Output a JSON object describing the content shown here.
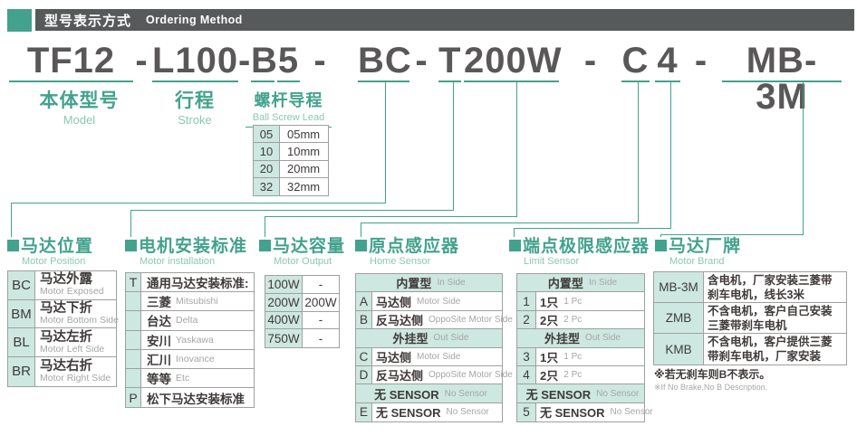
{
  "header": {
    "title_zh": "型号表示方式",
    "title_en": "Ordering Method"
  },
  "model_code": {
    "full": "TF12-L100-B5-BC-T200W-C4-MB-3M",
    "segments": [
      "TF12",
      "-",
      "L100",
      "-",
      "B",
      "5",
      "-",
      "BC",
      "-",
      "T",
      "200W",
      "-",
      "C",
      "4",
      "-",
      "MB-3M"
    ]
  },
  "top_groups": [
    {
      "zh": "本体型号",
      "en": "Model"
    },
    {
      "zh": "行程",
      "en": "Stroke"
    },
    {
      "zh": "螺杆导程",
      "en": "Ball Screw Lead"
    }
  ],
  "ball_screw_lead": {
    "rows": [
      {
        "code": "05",
        "zh": "05mm"
      },
      {
        "code": "10",
        "zh": "10mm"
      },
      {
        "code": "20",
        "zh": "20mm"
      },
      {
        "code": "32",
        "zh": "32mm"
      }
    ]
  },
  "sections": [
    {
      "title_zh": "马达位置",
      "title_en": "Motor Position",
      "rows": [
        {
          "code": "BC",
          "zh": "马达外露",
          "en": "Motor Exposed"
        },
        {
          "code": "BM",
          "zh": "马达下折",
          "en": "Motor Bottom Side"
        },
        {
          "code": "BL",
          "zh": "马达左折",
          "en": "Motor Left Side"
        },
        {
          "code": "BR",
          "zh": "马达右折",
          "en": "Motor Right Side"
        }
      ]
    },
    {
      "title_zh": "电机安装标准",
      "title_en": "Motor installation",
      "rows": [
        {
          "code": "T",
          "zh": "通用马达安装标准:",
          "en": ""
        },
        {
          "code": "",
          "zh": "三菱",
          "en": "Mitsubishi"
        },
        {
          "code": "",
          "zh": "台达",
          "en": "Delta"
        },
        {
          "code": "",
          "zh": "安川",
          "en": "Yaskawa"
        },
        {
          "code": "",
          "zh": "汇川",
          "en": "Inovance"
        },
        {
          "code": "",
          "zh": "等等",
          "en": "Etc"
        },
        {
          "code": "P",
          "zh": "松下马达安装标准",
          "en": ""
        }
      ]
    },
    {
      "title_zh": "马达容量",
      "title_en": "Motor Output",
      "rows": [
        {
          "code": "100W",
          "zh": "-"
        },
        {
          "code": "200W",
          "zh": "200W"
        },
        {
          "code": "400W",
          "zh": "-"
        },
        {
          "code": "750W",
          "zh": "-"
        }
      ]
    },
    {
      "title_zh": "原点感应器",
      "title_en": "Home Sensor",
      "rows": [
        {
          "header": true,
          "zh": "内置型",
          "en": "In Side"
        },
        {
          "code": "A",
          "zh": "马达侧",
          "en": "Motor Side"
        },
        {
          "code": "B",
          "zh": "反马达侧",
          "en": "OppoSite Motor Side"
        },
        {
          "header": true,
          "zh": "外挂型",
          "en": "Out Side"
        },
        {
          "code": "C",
          "zh": "马达侧",
          "en": "Motor Side"
        },
        {
          "code": "D",
          "zh": "反马达侧",
          "en": "OppoSite Motor Side"
        },
        {
          "header": true,
          "zh": "无 SENSOR",
          "en": "No Sensor"
        },
        {
          "code": "E",
          "zh": "无 SENSOR",
          "en": "No Sensor"
        }
      ]
    },
    {
      "title_zh": "端点极限感应器",
      "title_en": "Limit Sensor",
      "rows": [
        {
          "header": true,
          "zh": "内置型",
          "en": "In Side"
        },
        {
          "code": "1",
          "zh": "1只",
          "en": "1 Pc"
        },
        {
          "code": "2",
          "zh": "2只",
          "en": "2 Pc"
        },
        {
          "header": true,
          "zh": "外挂型",
          "en": "Out Side"
        },
        {
          "code": "3",
          "zh": "1只",
          "en": "1 Pc"
        },
        {
          "code": "4",
          "zh": "2只",
          "en": "2 Pc"
        },
        {
          "header": true,
          "zh": "无 SENSOR",
          "en": "No Sensor"
        },
        {
          "code": "5",
          "zh": "无 SENSOR",
          "en": "No Sensor"
        }
      ]
    },
    {
      "title_zh": "马达厂牌",
      "title_en": "Motor Brand",
      "rows": [
        {
          "code": "MB-3M",
          "zh": "含电机，厂家安装三菱带刹车电机，线长3米"
        },
        {
          "code": "ZMB",
          "zh": "不含电机，客户自己安装三菱带刹车电机"
        },
        {
          "code": "KMB",
          "zh": "不含电机，客户提供三菱带刹车电机，厂家安装"
        }
      ]
    }
  ],
  "footnote": {
    "zh": "※若无刹车则B不表示。",
    "en": "※If No Brake,No B Description."
  },
  "colors": {
    "accent": "#43a28d",
    "accent_light_cell": "#cde8e0",
    "header_bar": "#565a5a",
    "model_text": "#595757",
    "table_text": "#3f3a39",
    "muted_text": "#a6a6a6",
    "table_border": "#9fa0a0"
  }
}
